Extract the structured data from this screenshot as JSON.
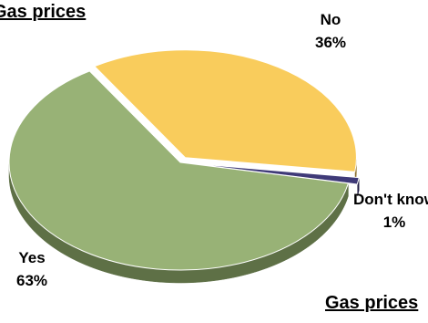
{
  "chart_data": {
    "type": "pie",
    "title": "Gas prices",
    "slices": [
      {
        "label": "No",
        "value": 36,
        "value_label": "36%",
        "color": "#F9CC5C",
        "side_color": "#8C6E2A",
        "exploded": true
      },
      {
        "label": "Don't know",
        "value": 1,
        "value_label": "1%",
        "color": "#3F3A78",
        "side_color": "#221F45",
        "exploded": true
      },
      {
        "label": "Yes",
        "value": 63,
        "value_label": "63%",
        "color": "#98B276",
        "side_color": "#5E7046",
        "exploded": false
      }
    ],
    "start_angle_deg": -122,
    "direction": "clockwise",
    "three_d": true,
    "legend": "none",
    "title_placement": [
      "top-left",
      "bottom-right"
    ]
  }
}
